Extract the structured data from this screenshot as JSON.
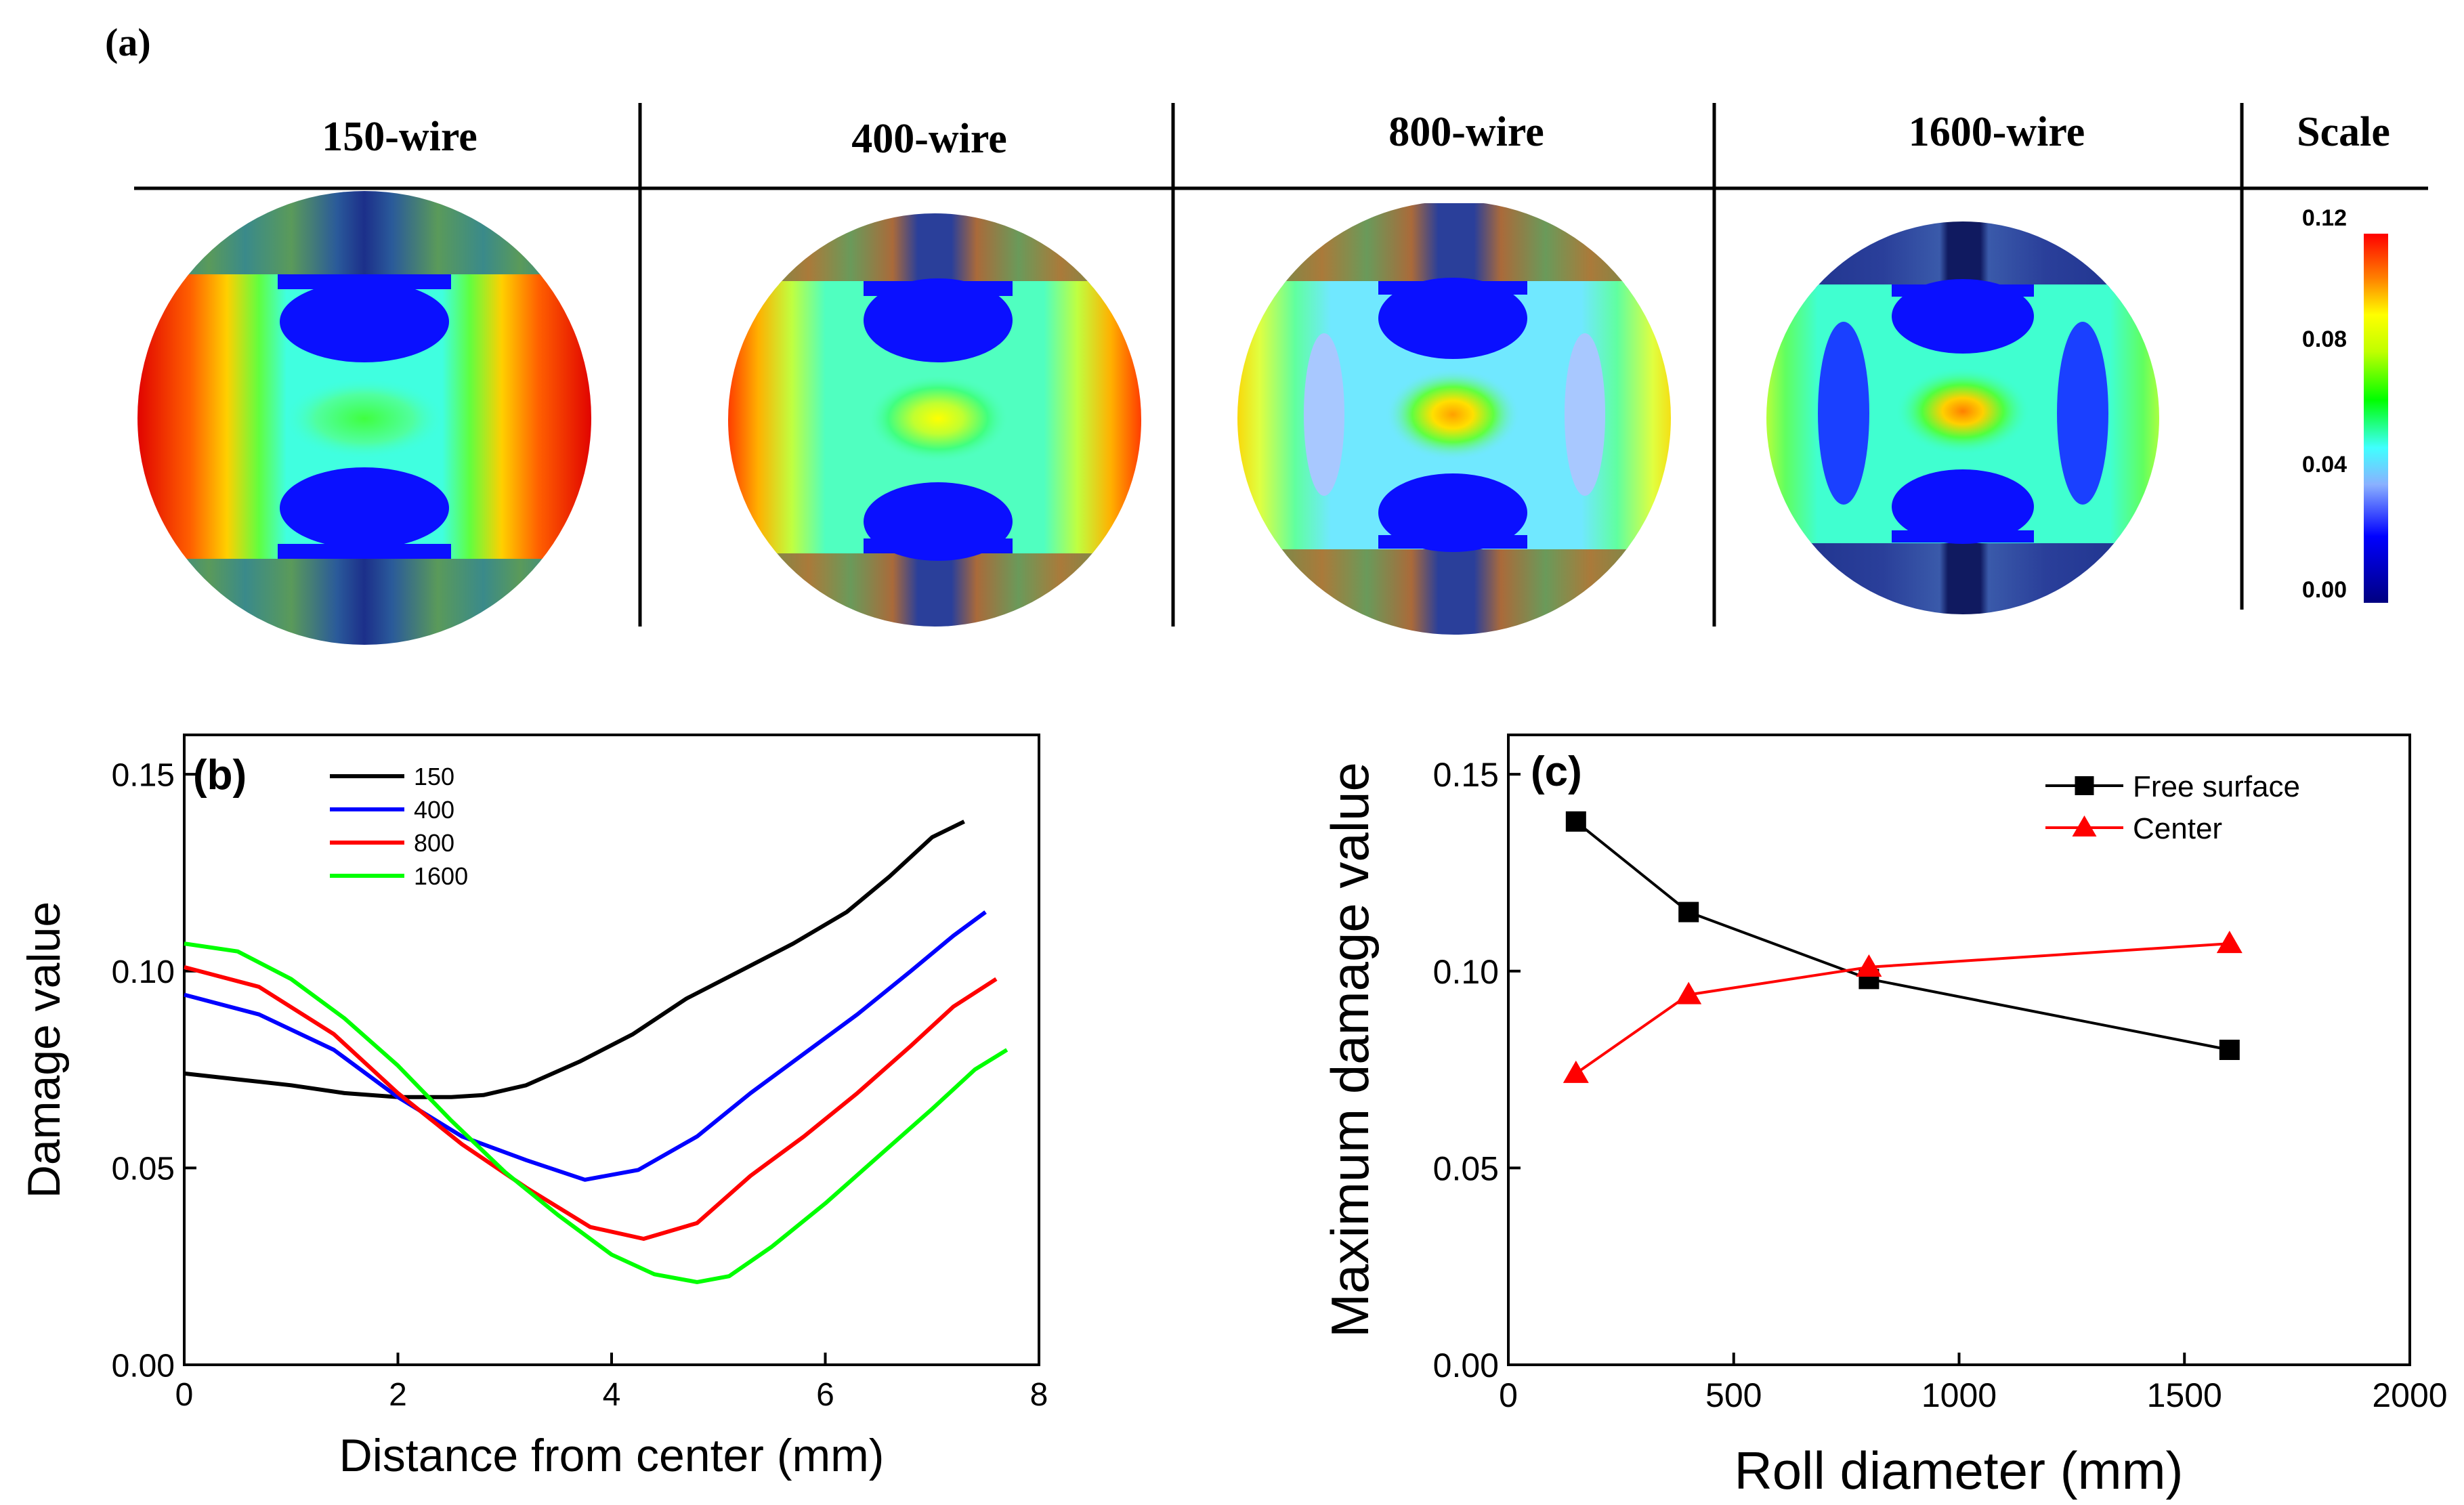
{
  "figure": {
    "panel_a_label": "(a)",
    "panel_b_label": "(b)",
    "panel_c_label": "(c)"
  },
  "panel_a": {
    "headers": [
      "150-wire",
      "400-wire",
      "800-wire",
      "1600-wire",
      "Scale"
    ],
    "scale_ticks": [
      "0.12",
      "0.08",
      "0.04",
      "0.00"
    ]
  },
  "chart_data": [
    {
      "type": "line",
      "panel": "b",
      "xlabel": "Distance from center (mm)",
      "ylabel": "Damage value",
      "xlim": [
        0,
        8
      ],
      "ylim": [
        0,
        0.16
      ],
      "xticks": [
        "0",
        "2",
        "4",
        "6",
        "8"
      ],
      "yticks": [
        "0.00",
        "0.05",
        "0.10",
        "0.15"
      ],
      "legend_position": "top-left",
      "series": [
        {
          "name": "150",
          "color": "#000000",
          "x": [
            0,
            0.5,
            1,
            1.5,
            2,
            2.5,
            2.8,
            3.2,
            3.7,
            4.2,
            4.7,
            5.2,
            5.7,
            6.2,
            6.6,
            7.0,
            7.3
          ],
          "y": [
            0.074,
            0.0725,
            0.071,
            0.069,
            0.068,
            0.068,
            0.0685,
            0.071,
            0.077,
            0.084,
            0.093,
            0.1,
            0.107,
            0.115,
            0.124,
            0.134,
            0.138
          ]
        },
        {
          "name": "400",
          "color": "#0000ff",
          "x": [
            0,
            0.7,
            1.4,
            2.0,
            2.6,
            3.2,
            3.75,
            4.25,
            4.8,
            5.3,
            5.8,
            6.3,
            6.8,
            7.2,
            7.5
          ],
          "y": [
            0.094,
            0.089,
            0.08,
            0.068,
            0.058,
            0.052,
            0.047,
            0.0495,
            0.058,
            0.069,
            0.079,
            0.089,
            0.1,
            0.109,
            0.115
          ]
        },
        {
          "name": "800",
          "color": "#ff0000",
          "x": [
            0,
            0.7,
            1.4,
            2.0,
            2.6,
            3.2,
            3.8,
            4.3,
            4.8,
            5.3,
            5.8,
            6.3,
            6.8,
            7.2,
            7.6
          ],
          "y": [
            0.101,
            0.096,
            0.084,
            0.069,
            0.056,
            0.045,
            0.035,
            0.032,
            0.036,
            0.048,
            0.058,
            0.069,
            0.081,
            0.091,
            0.098
          ]
        },
        {
          "name": "1600",
          "color": "#00ff00",
          "x": [
            0,
            0.5,
            1.0,
            1.5,
            2.0,
            2.5,
            3.0,
            3.5,
            4.0,
            4.4,
            4.8,
            5.1,
            5.5,
            6.0,
            6.5,
            7.0,
            7.4,
            7.7
          ],
          "y": [
            0.107,
            0.105,
            0.098,
            0.088,
            0.076,
            0.062,
            0.049,
            0.038,
            0.028,
            0.023,
            0.021,
            0.0225,
            0.03,
            0.041,
            0.053,
            0.065,
            0.075,
            0.08
          ]
        }
      ]
    },
    {
      "type": "line",
      "panel": "c",
      "xlabel": "Roll diameter (mm)",
      "ylabel": "Maximum damage value",
      "xlim": [
        0,
        2000
      ],
      "ylim": [
        0,
        0.16
      ],
      "xticks": [
        "0",
        "500",
        "1000",
        "1500",
        "2000"
      ],
      "yticks": [
        "0.00",
        "0.05",
        "0.10",
        "0.15"
      ],
      "legend_position": "top-right",
      "series": [
        {
          "name": "Free surface",
          "color": "#000000",
          "marker": "square",
          "x": [
            150,
            400,
            800,
            1600
          ],
          "y": [
            0.138,
            0.115,
            0.098,
            0.08
          ]
        },
        {
          "name": "Center",
          "color": "#ff0000",
          "marker": "triangle",
          "x": [
            150,
            400,
            800,
            1600
          ],
          "y": [
            0.074,
            0.094,
            0.101,
            0.107
          ]
        }
      ]
    }
  ]
}
